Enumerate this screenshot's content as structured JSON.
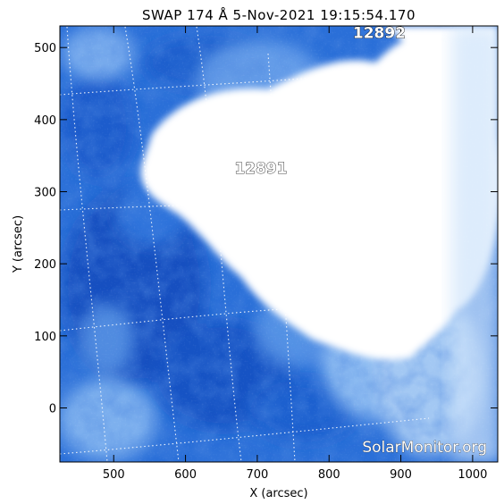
{
  "title": "SWAP 174 Å  5-Nov-2021 19:15:54.170",
  "x_axis": {
    "label": "X (arcsec)",
    "range": [
      425,
      1035
    ],
    "ticks": [
      500,
      600,
      700,
      800,
      900,
      1000
    ]
  },
  "y_axis": {
    "label": "Y (arcsec)",
    "range": [
      -75,
      530
    ],
    "ticks": [
      0,
      100,
      200,
      300,
      400,
      500
    ]
  },
  "regions": [
    {
      "number": "12891",
      "x": 705,
      "y": 333
    },
    {
      "number": "12892",
      "x": 870,
      "y": 521
    }
  ],
  "watermark": "SolarMonitor.org",
  "colors": {
    "deep": "#1557c8",
    "mid": "#3d7fe0",
    "light": "#9cc6f5",
    "bright": "#ffffff",
    "grid": "#ffffff"
  }
}
